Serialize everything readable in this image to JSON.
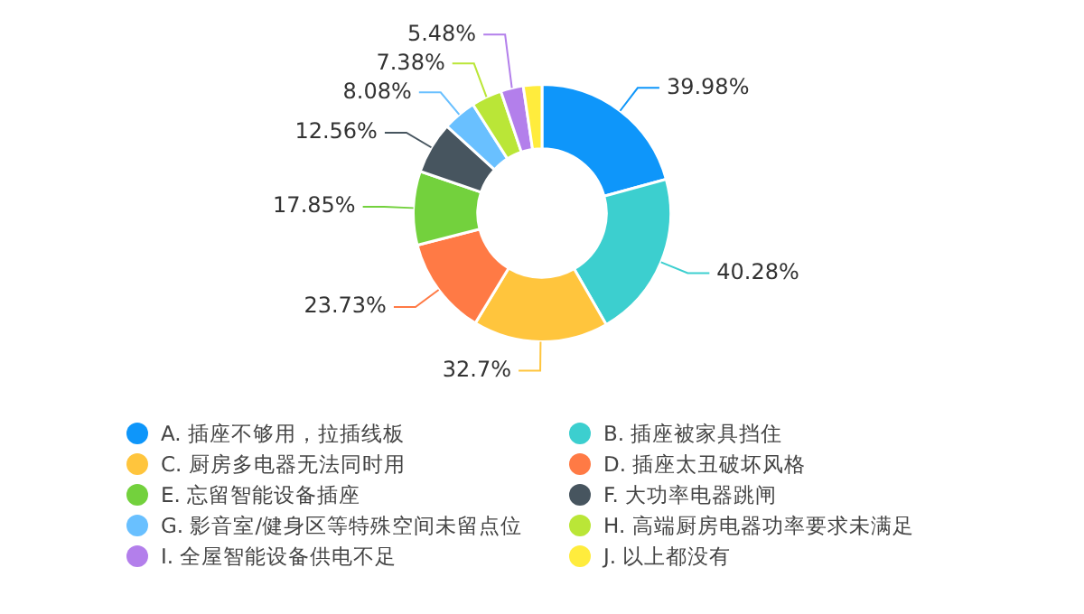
{
  "chart_data": {
    "type": "donut",
    "categories": [
      "A. 插座不够用，拉插线板",
      "B. 插座被家具挡住",
      "C. 厨房多电器无法同时用",
      "D. 插座太丑破坏风格",
      "E. 忘留智能设备插座",
      "F. 大功率电器跳闸",
      "G. 影音室/健身区等特殊空间未留点位",
      "H. 高端厨房电器功率要求未满足",
      "I. 全屋智能设备供电不足",
      "J. 以上都没有"
    ],
    "values": [
      39.98,
      40.28,
      32.7,
      23.73,
      17.85,
      12.56,
      8.08,
      7.38,
      5.48,
      4.5
    ],
    "value_labels": [
      "39.98%",
      "40.28%",
      "32.7%",
      "23.73%",
      "17.85%",
      "12.56%",
      "8.08%",
      "7.38%",
      "5.48%",
      null
    ],
    "colors": [
      "#0e96fa",
      "#3ccfcf",
      "#ffc53d",
      "#ff7a45",
      "#73d13d",
      "#47555f",
      "#69c0ff",
      "#bae637",
      "#b37feb",
      "#ffec3d"
    ],
    "legend": "bottom"
  }
}
